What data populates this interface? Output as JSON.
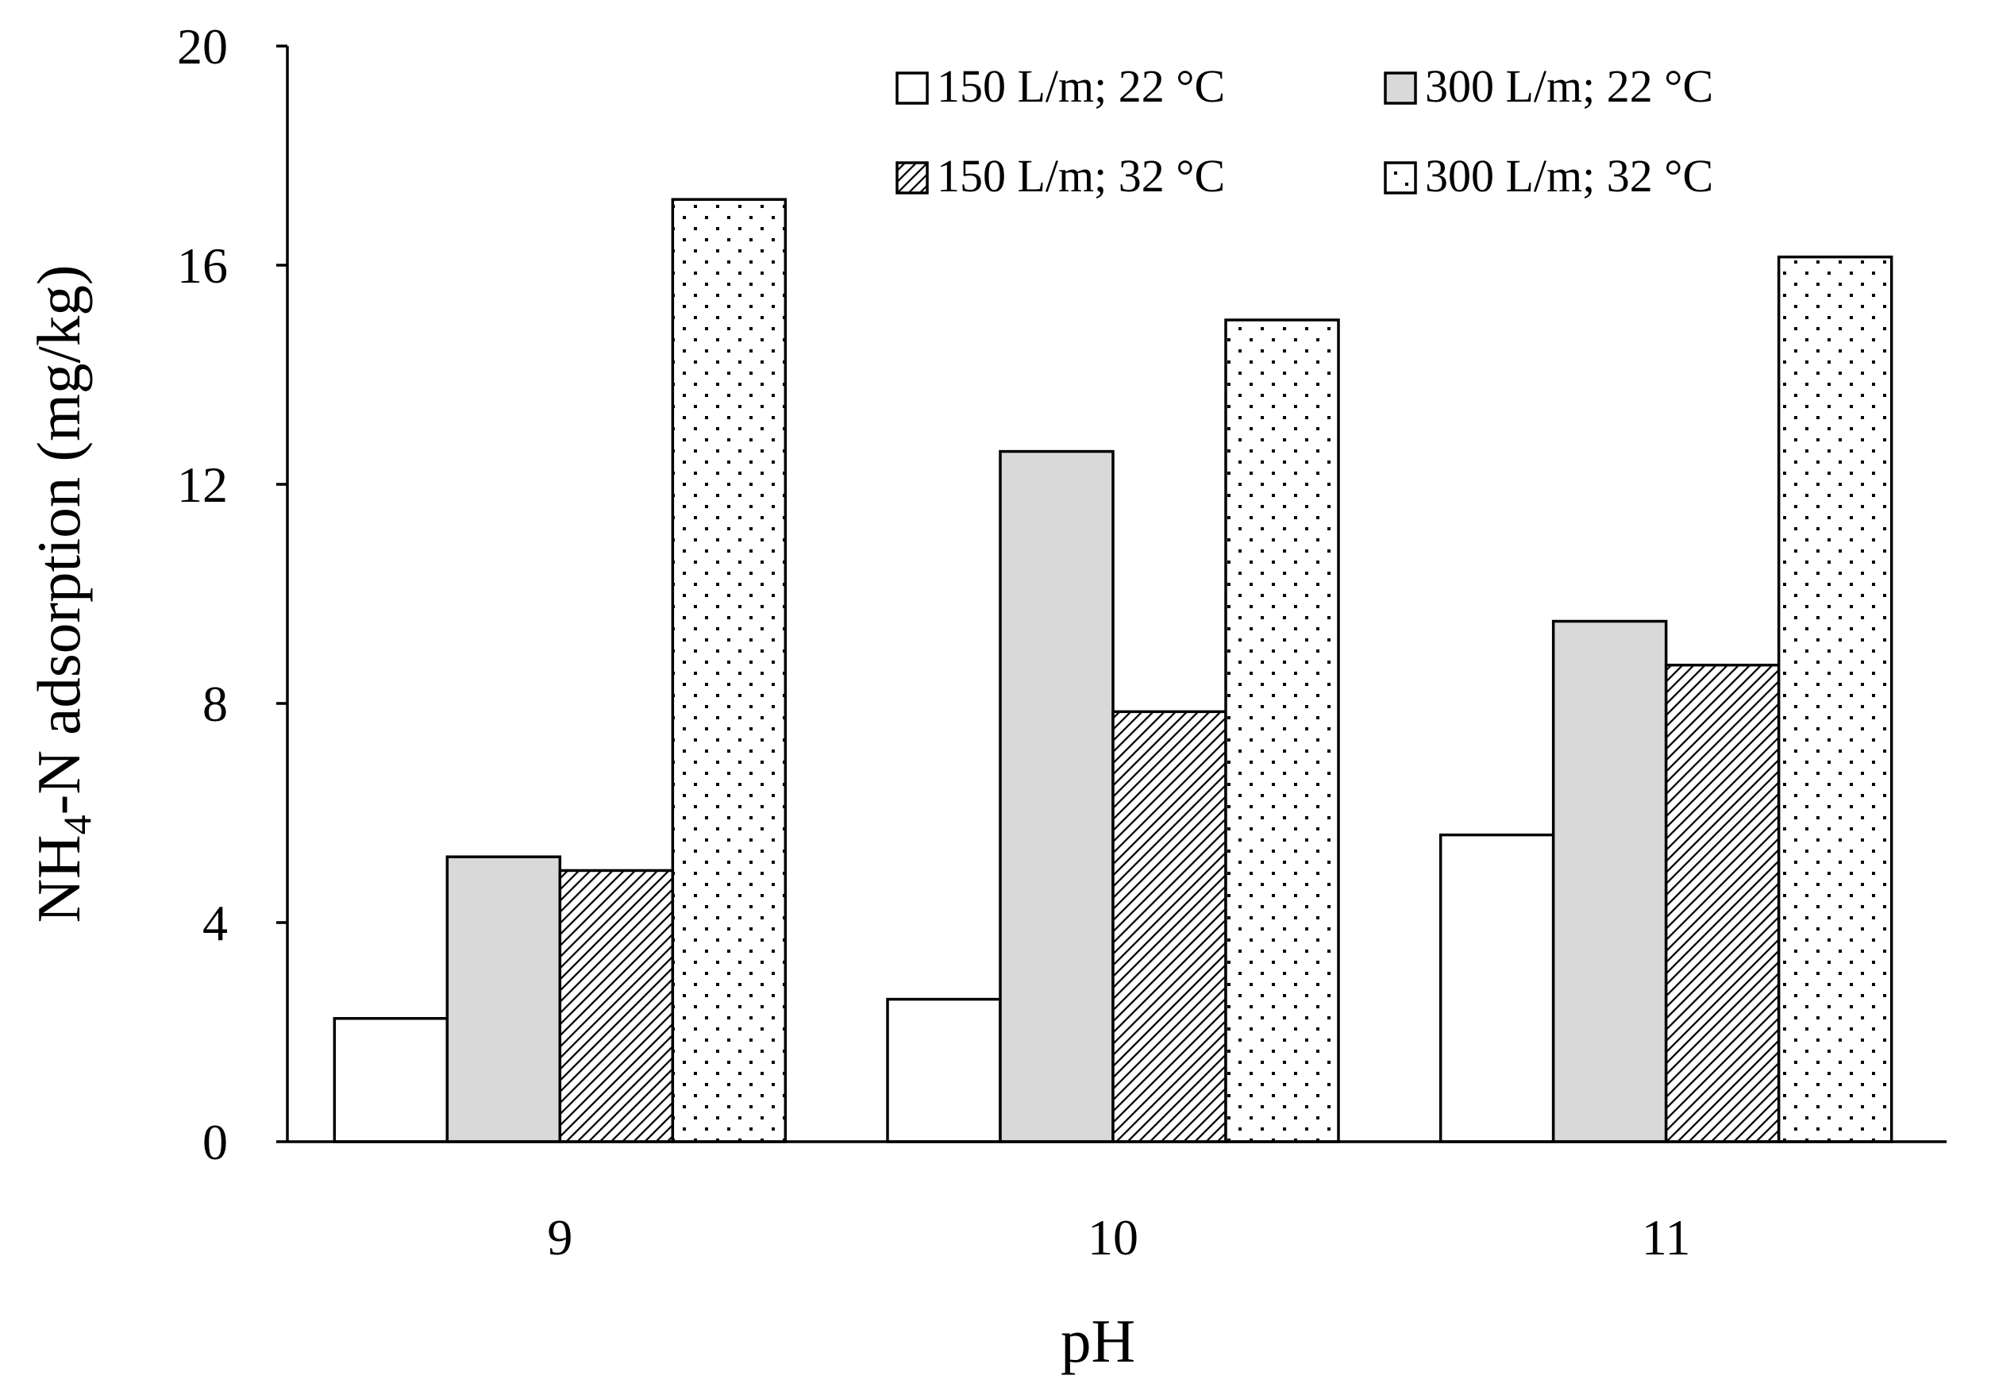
{
  "chart_data": {
    "type": "bar",
    "title": "",
    "xlabel": "pH",
    "ylabel_main": "NH",
    "ylabel_sub": "4",
    "ylabel_rest": "-N adsorption (mg/kg)",
    "ylabel": "NH4-N adsorption (mg/kg)",
    "ylim": [
      0,
      20
    ],
    "yticks": [
      0,
      4,
      8,
      12,
      16,
      20
    ],
    "categories": [
      "9",
      "10",
      "11"
    ],
    "legend_position": "top-right",
    "series": [
      {
        "name": "150 L/m; 22 °C",
        "pattern": "white",
        "values": [
          2.25,
          2.6,
          5.6
        ]
      },
      {
        "name": "300 L/m; 22 °C",
        "pattern": "gray",
        "values": [
          5.2,
          12.6,
          9.5
        ]
      },
      {
        "name": "150 L/m; 32 °C",
        "pattern": "hatch",
        "values": [
          4.95,
          7.85,
          8.7
        ]
      },
      {
        "name": "300 L/m; 32 °C",
        "pattern": "dots",
        "values": [
          17.2,
          15.0,
          16.15
        ]
      }
    ],
    "colors": {
      "gray": "#d9d9d9",
      "stroke": "#000000"
    }
  }
}
